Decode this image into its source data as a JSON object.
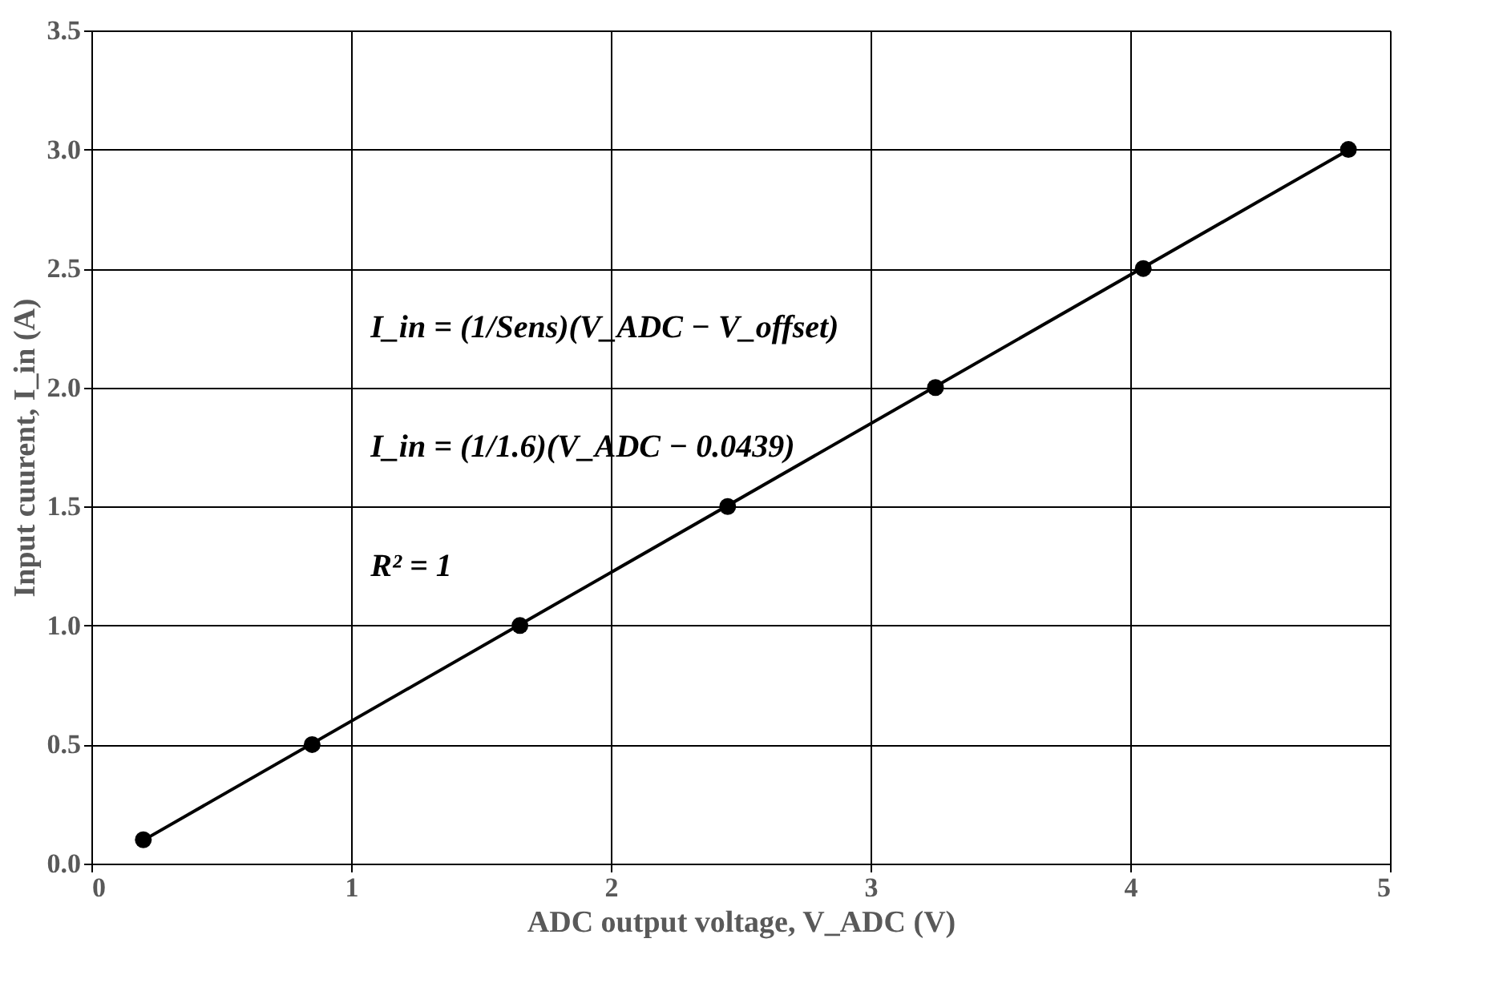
{
  "chart_data": {
    "type": "scatter",
    "xlabel": "ADC output voltage, V_ADC  (V)",
    "ylabel": "Input cuurent, I_in (A)",
    "x": [
      0.2,
      0.85,
      1.65,
      2.45,
      3.25,
      4.05,
      4.84
    ],
    "series": [
      {
        "color": "#000000",
        "marker": "circle",
        "values": [
          0.1,
          0.5,
          1.0,
          1.5,
          2.0,
          2.5,
          3.0
        ]
      },
      {
        "type": "line",
        "color": "#000000",
        "line_style": "solid",
        "x": [
          0.2,
          4.84
        ],
        "values": [
          0.098,
          2.998
        ]
      }
    ],
    "xlim": [
      0,
      5
    ],
    "ylim": [
      0,
      3.5
    ],
    "xticks": [
      0,
      1,
      2,
      3,
      4,
      5
    ],
    "yticks": [
      {
        "value": 0,
        "label": "0.0"
      },
      {
        "value": 0.5,
        "label": "0.5"
      },
      {
        "value": 1,
        "label": "1.0"
      },
      {
        "value": 1.5,
        "label": "1.5"
      },
      {
        "value": 2,
        "label": "2.0"
      },
      {
        "value": 2.5,
        "label": "2.5"
      },
      {
        "value": 3,
        "label": "3.0"
      },
      {
        "value": 3.5,
        "label": "3.5"
      }
    ],
    "grid": true,
    "annotations": [
      "I_in = (1/Sens)(V_ADC − V_offset)",
      "I_in = (1/1.6)(V_ADC − 0.0439)",
      "R² = 1"
    ]
  }
}
